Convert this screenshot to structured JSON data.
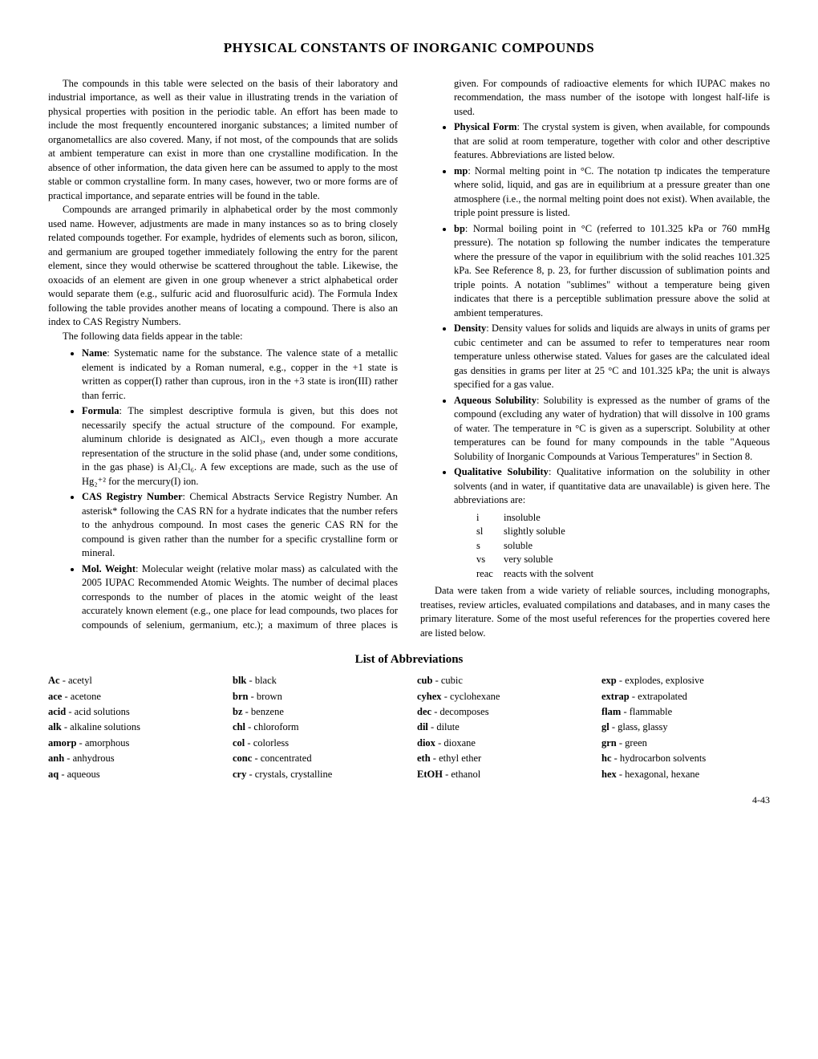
{
  "title": "PHYSICAL CONSTANTS OF INORGANIC COMPOUNDS",
  "intro": {
    "p1": "The compounds in this table were selected on the basis of their laboratory and industrial importance, as well as their value in illustrating trends in the variation of physical properties with position in the periodic table. An effort has been made to include the most frequently encountered inorganic substances; a limited number of organometallics are also covered. Many, if not most, of the compounds that are solids at ambient temperature can exist in more than one crystalline modification.  In the absence of other information, the data given here can be assumed to apply to the most stable or common crystalline form.  In many cases, however, two or more forms are of practical importance, and separate entries will be found in the table.",
    "p2": "Compounds are arranged primarily in alphabetical order by the most commonly used name. However, adjustments are made in many instances so as to bring closely related compounds together.  For example, hydrides of elements such as boron, silicon, and germanium are grouped together immediately following the entry for the parent element, since they would otherwise be scattered throughout the table.  Likewise, the oxoacids of an element are given in one group whenever a strict alphabetical order would separate them (e.g., sulfuric acid and fluorosulfuric acid). The Formula Index following the table provides another means of locating a compound. There is also an index to CAS Registry Numbers.",
    "p3": "The following data fields appear in the table:"
  },
  "fields": {
    "name": {
      "label": "Name",
      "text": ": Systematic name for the substance. The valence state of a metallic element is indicated by a Roman numeral, e.g., copper in the +1 state is written as copper(I) rather than cuprous, iron in the +3 state is iron(III) rather than ferric."
    },
    "formula": {
      "label": "Formula",
      "text": ": The simplest descriptive formula is given, but this does not necessarily specify the actual structure of the compound. For example, aluminum chloride is designated as AlCl₃, even though a more accurate representation of the structure in the solid phase (and, under some conditions, in the gas phase) is Al₂Cl₆. A few exceptions are made, such as the use of Hg₂⁺² for the mercury(I) ion."
    },
    "cas": {
      "label": "CAS Registry Number",
      "text": ": Chemical Abstracts Service Registry Number.  An asterisk* following the CAS RN for a hydrate indicates that the number refers to the anhydrous compound.  In most cases the generic CAS RN for the compound is given rather than the number for a specific crystalline form or mineral."
    },
    "mw": {
      "label": "Mol. Weight",
      "text": ": Molecular weight (relative molar mass) as calculated with the 2005 IUPAC Recommended Atomic Weights.  The number of decimal places corresponds to the number of places in the atomic weight of the least accurately known element (e.g., one place for lead compounds, two places for compounds of selenium, germanium, etc.); a maximum of three places is given.  For compounds of radioactive elements for which IUPAC makes no recommendation, the mass number of the isotope with longest half-life is used."
    },
    "pf": {
      "label": "Physical Form",
      "text": ": The crystal system is given, when available, for compounds that are solid at room temperature, together with color and other descriptive features. Abbreviations are listed below."
    },
    "mp": {
      "label": "mp",
      "text": ": Normal melting point in °C. The notation tp indicates the temperature where solid, liquid, and gas are in equilibrium at a pressure greater than one atmosphere (i.e., the normal melting point does not exist).  When available, the triple point pressure is listed."
    },
    "bp": {
      "label": "bp",
      "text": ":  Normal boiling point in °C (referred to 101.325 kPa or 760 mmHg pressure).  The notation sp following the number indicates the temperature where the  pressure of the vapor in equilibrium with the solid reaches 101.325 kPa.  See Reference 8, p. 23, for further discussion of sublimation points and triple points.  A notation \"sublimes\" without a temperature being given indicates that there is a perceptible sublimation pressure above the solid at ambient temperatures."
    },
    "density": {
      "label": "Density",
      "text": ": Density values for solids and liquids are always in units of grams per cubic centimeter and can be assumed to refer to temperatures near room temperature unless otherwise stated.  Values for gases are the calculated ideal gas densities in grams per liter at 25 °C and 101.325 kPa; the unit is always specified for a gas value."
    },
    "aqsol": {
      "label": "Aqueous Solubility",
      "text": ": Solubility is expressed as the number of grams of the compound (excluding any water of hydration) that will dissolve in 100 grams of water. The temperature in °C is given as a superscript. Solubility at other temperatures can be found for many compounds in the table \"Aqueous Solubility of Inorganic Compounds at Various Temperatures\" in Section 8."
    },
    "qualsol": {
      "label": "Qualitative Solubility",
      "text": ": Qualitative information on the solubility in other solvents (and in water, if quantitative data are unavailable) is given here. The abbreviations are:"
    }
  },
  "solkeys": [
    {
      "k": "i",
      "v": "insoluble"
    },
    {
      "k": "sl",
      "v": "slightly soluble"
    },
    {
      "k": "s",
      "v": "soluble"
    },
    {
      "k": "vs",
      "v": "very soluble"
    },
    {
      "k": "reac",
      "v": "reacts with the solvent"
    }
  ],
  "closing": "Data were taken from a wide variety of reliable sources, including monographs, treatises, review articles, evaluated compilations and databases, and in many cases the primary literature. Some of the most useful references for the properties covered here are listed below.",
  "abbrev_title": "List of Abbreviations",
  "abbrevs": {
    "col1": [
      {
        "k": "Ac",
        "v": "acetyl"
      },
      {
        "k": "ace",
        "v": "acetone"
      },
      {
        "k": "acid",
        "v": "acid solutions"
      },
      {
        "k": "alk",
        "v": "alkaline solutions"
      },
      {
        "k": "amorp",
        "v": "amorphous"
      },
      {
        "k": "anh",
        "v": "anhydrous"
      },
      {
        "k": "aq",
        "v": "aqueous"
      }
    ],
    "col2": [
      {
        "k": "blk",
        "v": "black"
      },
      {
        "k": "brn",
        "v": "brown"
      },
      {
        "k": "bz",
        "v": "benzene"
      },
      {
        "k": "chl",
        "v": "chloroform"
      },
      {
        "k": "col",
        "v": "colorless"
      },
      {
        "k": "conc",
        "v": "concentrated"
      },
      {
        "k": "cry",
        "v": "crystals, crystalline"
      }
    ],
    "col3": [
      {
        "k": "cub",
        "v": "cubic"
      },
      {
        "k": "cyhex",
        "v": "cyclohexane"
      },
      {
        "k": "dec",
        "v": "decomposes"
      },
      {
        "k": "dil",
        "v": "dilute"
      },
      {
        "k": "diox",
        "v": "dioxane"
      },
      {
        "k": "eth",
        "v": "ethyl ether"
      },
      {
        "k": "EtOH",
        "v": "ethanol"
      }
    ],
    "col4": [
      {
        "k": "exp",
        "v": "explodes, explosive"
      },
      {
        "k": "extrap",
        "v": "extrapolated"
      },
      {
        "k": "flam",
        "v": "flammable"
      },
      {
        "k": "gl",
        "v": "glass, glassy"
      },
      {
        "k": "grn",
        "v": "green"
      },
      {
        "k": "hc",
        "v": "hydrocarbon solvents"
      },
      {
        "k": "hex",
        "v": "hexagonal, hexane"
      }
    ]
  },
  "page_num": "4-43"
}
